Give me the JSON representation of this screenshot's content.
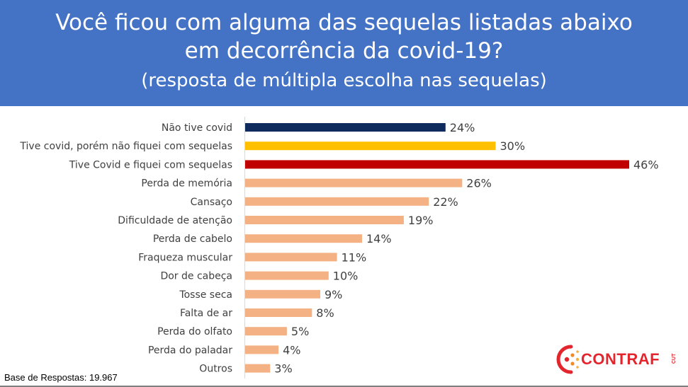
{
  "header": {
    "title_line1": "Você ficou com alguma das sequelas listadas abaixo",
    "title_line2": "em decorrência da covid-19?",
    "subtitle": "(resposta de múltipla escolha nas sequelas)",
    "background_color": "#4472c4"
  },
  "chart_data": {
    "type": "bar",
    "orientation": "horizontal",
    "categories": [
      "Não tive covid",
      "Tive covid, porém não fiquei com sequelas",
      "Tive Covid e fiquei com sequelas",
      "Perda de memória",
      "Cansaço",
      "Dificuldade de atenção",
      "Perda de cabelo",
      "Fraqueza muscular",
      "Dor de cabeça",
      "Tosse seca",
      "Falta de ar",
      "Perda do olfato",
      "Perda do paladar",
      "Outros"
    ],
    "values": [
      24,
      30,
      46,
      26,
      22,
      19,
      14,
      11,
      10,
      9,
      8,
      5,
      4,
      3
    ],
    "value_labels": [
      "24%",
      "30%",
      "46%",
      "26%",
      "22%",
      "19%",
      "14%",
      "11%",
      "10%",
      "9%",
      "8%",
      "5%",
      "4%",
      "3%"
    ],
    "bar_colors": [
      "#0f2a5c",
      "#ffc000",
      "#c00000",
      "#f4b183",
      "#f4b183",
      "#f4b183",
      "#f4b183",
      "#f4b183",
      "#f4b183",
      "#f4b183",
      "#f4b183",
      "#f4b183",
      "#f4b183",
      "#f4b183"
    ],
    "xlim": [
      0,
      46
    ],
    "grid": false,
    "legend": "none"
  },
  "footer": {
    "base_note": "Base de Respostas: 19.967"
  },
  "logo": {
    "text": "CONTRAF",
    "subtext": "CUT",
    "color": "#e3262d"
  }
}
